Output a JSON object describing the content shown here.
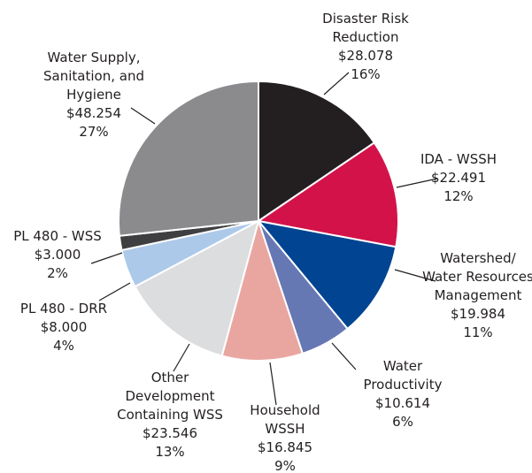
{
  "chart_data": {
    "type": "pie",
    "categories": [
      "Disaster Risk\nReduction",
      "IDA - WSSH",
      "Watershed/\nWater Resources\nManagement",
      "Water\nProductivity",
      "Household\nWSSH",
      "Other\nDevelopment\nContaining WSS",
      "PL 480 - DRR",
      "PL 480 - WSS",
      "Water Supply,\nSanitation, and\nHygiene"
    ],
    "values": [
      28.078,
      22.491,
      19.984,
      10.614,
      16.845,
      23.546,
      8.0,
      3.0,
      48.254
    ],
    "value_labels": [
      "$28.078",
      "$22.491",
      "$19.984",
      "$10.614",
      "$16.845",
      "$23.546",
      "$8.000",
      "$3.000",
      "$48.254"
    ],
    "percents": [
      16,
      12,
      11,
      6,
      9,
      13,
      4,
      2,
      27
    ],
    "percent_labels": [
      "16%",
      "12%",
      "11%",
      "6%",
      "9%",
      "13%",
      "4%",
      "2%",
      "27%"
    ],
    "colors": [
      "#231f20",
      "#d3124a",
      "#004492",
      "#6678b4",
      "#e9a6a1",
      "#dcdddf",
      "#adc9ea",
      "#3f3f41",
      "#8b8b8e"
    ]
  }
}
